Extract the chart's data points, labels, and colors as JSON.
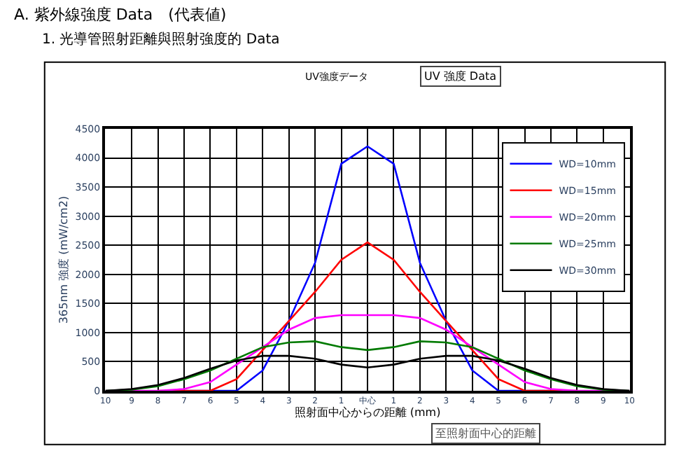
{
  "chart_data": {
    "type": "line",
    "title": "A. 紫外線強度 Data　(代表値)",
    "subtitle": "1. 光導管照射距離與照射強度的 Data",
    "xlabel": "照射面中心からの距離 (mm)",
    "ylabel": "365nm 強度 (mW/cm2)",
    "categories": [
      "10",
      "9",
      "8",
      "7",
      "6",
      "5",
      "4",
      "3",
      "2",
      "1",
      "中心",
      "1",
      "2",
      "3",
      "4",
      "5",
      "6",
      "7",
      "8",
      "9",
      "10"
    ],
    "series": [
      {
        "name": "WD=10mm",
        "color": "#0000ff",
        "values": [
          null,
          null,
          null,
          0,
          0,
          0,
          350,
          1200,
          2200,
          3900,
          4200,
          3900,
          2200,
          1200,
          350,
          0,
          0,
          0,
          null,
          null,
          null
        ]
      },
      {
        "name": "WD=15mm",
        "color": "#ff0000",
        "values": [
          null,
          null,
          0,
          0,
          0,
          200,
          700,
          1200,
          1700,
          2250,
          2550,
          2250,
          1700,
          1200,
          700,
          200,
          0,
          0,
          0,
          null,
          null
        ]
      },
      {
        "name": "WD=20mm",
        "color": "#ff00ff",
        "values": [
          0,
          0,
          0,
          30,
          150,
          450,
          750,
          1050,
          1250,
          1300,
          1300,
          1300,
          1250,
          1050,
          750,
          450,
          150,
          30,
          0,
          0,
          0
        ]
      },
      {
        "name": "WD=25mm",
        "color": "#007a00",
        "values": [
          0,
          20,
          80,
          200,
          350,
          550,
          750,
          830,
          850,
          750,
          700,
          750,
          850,
          830,
          750,
          550,
          350,
          200,
          80,
          20,
          0
        ]
      },
      {
        "name": "WD=30mm",
        "color": "#000000",
        "values": [
          0,
          30,
          100,
          220,
          380,
          520,
          600,
          600,
          550,
          450,
          400,
          450,
          550,
          600,
          600,
          520,
          380,
          220,
          100,
          30,
          0
        ]
      }
    ],
    "ylim": [
      0,
      4500
    ],
    "yticks": [
      0,
      500,
      1000,
      1500,
      2000,
      2500,
      3000,
      3500,
      4000,
      4500
    ],
    "grid": true,
    "legend": "top right",
    "marker": "none",
    "line_style": "solid",
    "annotations": [
      "UV強度データ",
      "UV 強度 Data",
      "至照射面中心的距離"
    ]
  }
}
